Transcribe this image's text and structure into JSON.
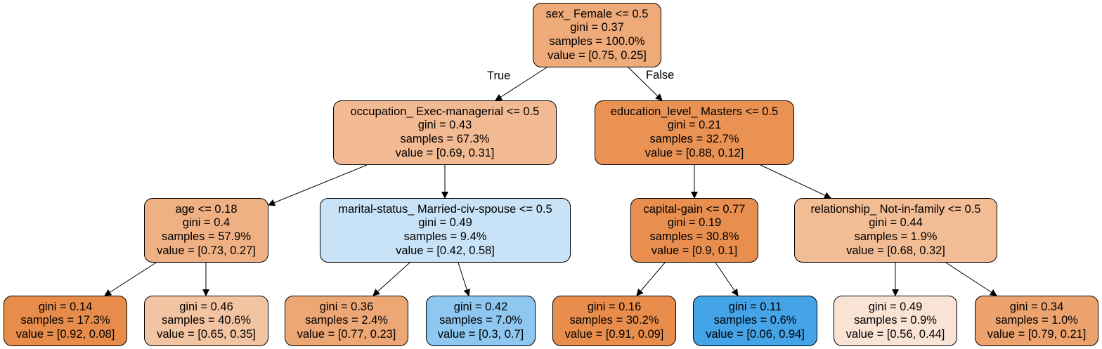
{
  "edge_labels": {
    "true": "True",
    "false": "False"
  },
  "nodes": {
    "root": {
      "split": "sex_ Female <= 0.5",
      "gini": "gini = 0.37",
      "samples": "samples = 100.0%",
      "value": "value = [0.75, 0.25]",
      "color": "#efaa79"
    },
    "l": {
      "split": "occupation_ Exec-managerial <= 0.5",
      "gini": "gini = 0.43",
      "samples": "samples = 67.3%",
      "value": "value = [0.69, 0.31]",
      "color": "#f2ba92"
    },
    "r": {
      "split": "education_level_ Masters <= 0.5",
      "gini": "gini = 0.21",
      "samples": "samples = 32.7%",
      "value": "value = [0.88, 0.12]",
      "color": "#e99254"
    },
    "ll": {
      "split": "age <= 0.18",
      "gini": "gini = 0.4",
      "samples": "samples = 57.9%",
      "value": "value = [0.73, 0.27]",
      "color": "#efb083"
    },
    "lr": {
      "split": "marital-status_ Married-civ-spouse <= 0.5",
      "gini": "gini = 0.49",
      "samples": "samples = 9.4%",
      "value": "value = [0.42, 0.58]",
      "color": "#c8e3f7"
    },
    "rl": {
      "split": "capital-gain <= 0.77",
      "gini": "gini = 0.19",
      "samples": "samples = 30.8%",
      "value": "value = [0.9, 0.1]",
      "color": "#e88f50"
    },
    "rr": {
      "split": "relationship_ Not-in-family <= 0.5",
      "gini": "gini = 0.44",
      "samples": "samples = 1.9%",
      "value": "value = [0.68, 0.32]",
      "color": "#f2bc95"
    },
    "lll": {
      "gini": "gini = 0.14",
      "samples": "samples = 17.3%",
      "value": "value = [0.92, 0.08]",
      "color": "#e78c4a"
    },
    "llr": {
      "gini": "gini = 0.46",
      "samples": "samples = 40.6%",
      "value": "value = [0.65, 0.35]",
      "color": "#f3c4a2"
    },
    "lrl": {
      "gini": "gini = 0.36",
      "samples": "samples = 2.4%",
      "value": "value = [0.77, 0.23]",
      "color": "#eda775"
    },
    "lrr": {
      "gini": "gini = 0.42",
      "samples": "samples = 7.0%",
      "value": "value = [0.3, 0.7]",
      "color": "#8ec7f0"
    },
    "rll": {
      "gini": "gini = 0.16",
      "samples": "samples = 30.2%",
      "value": "value = [0.91, 0.09]",
      "color": "#e88d4c"
    },
    "rlr": {
      "gini": "gini = 0.11",
      "samples": "samples = 0.6%",
      "value": "value = [0.06, 0.94]",
      "color": "#45a3e7"
    },
    "rrl": {
      "gini": "gini = 0.49",
      "samples": "samples = 0.9%",
      "value": "value = [0.56, 0.44]",
      "color": "#f9e3d4"
    },
    "rrr": {
      "gini": "gini = 0.34",
      "samples": "samples = 1.0%",
      "value": "value = [0.79, 0.21]",
      "color": "#eca36e"
    }
  }
}
